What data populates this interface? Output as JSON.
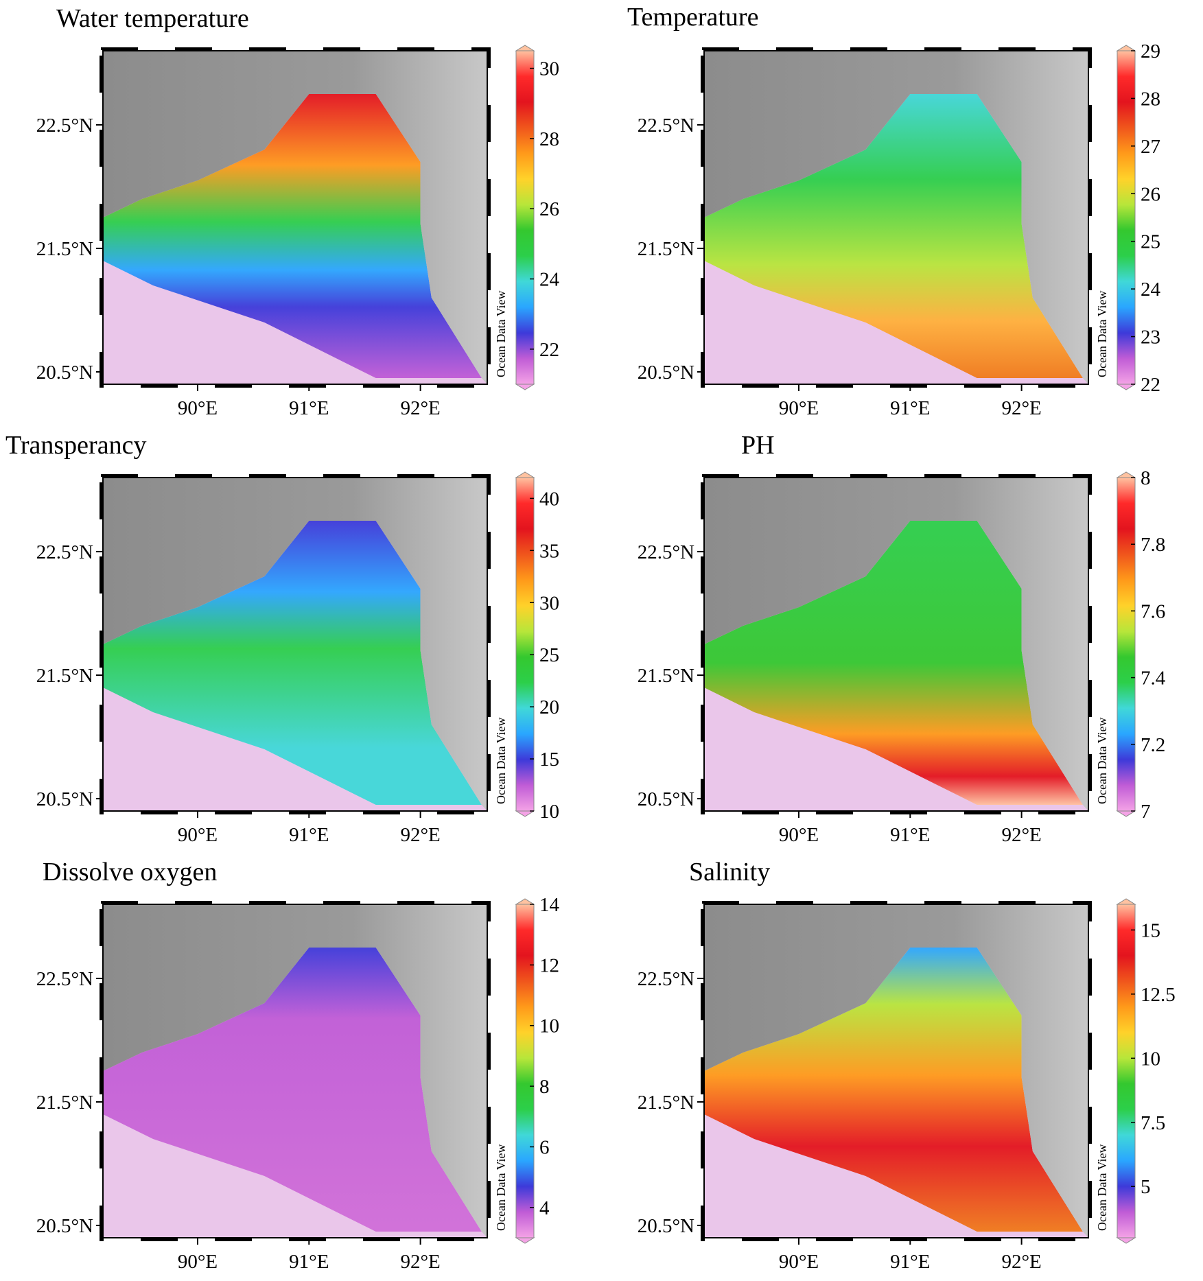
{
  "axes": {
    "lat_labels": [
      "22.5°N",
      "21.5°N",
      "20.5°N"
    ],
    "lon_labels": [
      "90°E",
      "91°E",
      "92°E"
    ]
  },
  "watermark": "Ocean Data View",
  "colors": {
    "land": "#8c8c8c",
    "highland": "#c8c8c8",
    "no_data": "#eac6ea",
    "frame": "#000000"
  },
  "panels": [
    {
      "title": "Water temperature",
      "colorbar_ticks": [
        "30",
        "28",
        "26",
        "24",
        "22"
      ],
      "colorbar_values": [
        30,
        28,
        26,
        24,
        22
      ],
      "range": [
        21,
        30.5
      ]
    },
    {
      "title": "Temperature",
      "colorbar_ticks": [
        "29",
        "28",
        "27",
        "26",
        "25",
        "24",
        "23",
        "22"
      ],
      "colorbar_values": [
        29,
        28,
        27,
        26,
        25,
        24,
        23,
        22
      ],
      "range": [
        22,
        29
      ]
    },
    {
      "title": "Transperancy",
      "colorbar_ticks": [
        "40",
        "35",
        "30",
        "25",
        "20",
        "15",
        "10"
      ],
      "colorbar_values": [
        40,
        35,
        30,
        25,
        20,
        15,
        10
      ],
      "range": [
        10,
        42
      ]
    },
    {
      "title": "PH",
      "colorbar_ticks": [
        "8",
        "7.8",
        "7.6",
        "7.4",
        "7.2",
        "7"
      ],
      "colorbar_values": [
        8,
        7.8,
        7.6,
        7.4,
        7.2,
        7
      ],
      "range": [
        7,
        8
      ]
    },
    {
      "title": "Dissolve oxygen",
      "colorbar_ticks": [
        "14",
        "12",
        "10",
        "8",
        "6",
        "4"
      ],
      "colorbar_values": [
        14,
        12,
        10,
        8,
        6,
        4
      ],
      "range": [
        3,
        14
      ]
    },
    {
      "title": "Salinity",
      "colorbar_ticks": [
        "15",
        "12.5",
        "10",
        "7.5",
        "5"
      ],
      "colorbar_values": [
        15,
        12.5,
        10,
        7.5,
        5
      ],
      "range": [
        3,
        16
      ]
    }
  ]
}
